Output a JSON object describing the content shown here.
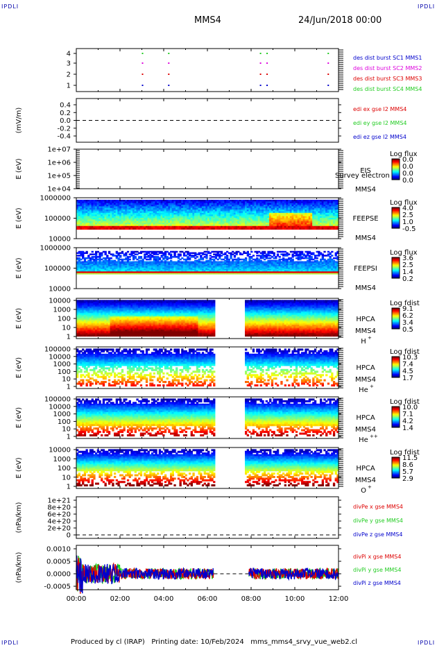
{
  "corner_label": "IPDLI",
  "header": {
    "spacecraft": "MMS4",
    "datetime": "24/Jun/2018 00:00"
  },
  "x_axis": {
    "ticks": [
      "00:00",
      "02:00",
      "04:00",
      "06:00",
      "08:00",
      "10:00",
      "12:00"
    ]
  },
  "footer": {
    "produced_by": "Produced by cl (IRAP)",
    "printing_date": "Printing date: 10/Feb/2024",
    "file_name": "mms_mms4_srvy_vue_web2.cl"
  },
  "colors": {
    "blue": "#0000cc",
    "magenta": "#dd00dd",
    "red": "#dd0000",
    "green": "#22cc22"
  },
  "chart_data": [
    {
      "type": "scatter",
      "panel": "burst",
      "yticks": [
        "4",
        "3",
        "2",
        "1"
      ],
      "legend": [
        {
          "text": "des dist burst SC1 MMS1",
          "color": "blue"
        },
        {
          "text": "des dist burst SC2 MMS2",
          "color": "magenta"
        },
        {
          "text": "des dist burst SC3 MMS3",
          "color": "red"
        },
        {
          "text": "des dist burst SC4 MMS4",
          "color": "green"
        }
      ],
      "burst_times_hours": [
        3.0,
        4.2,
        8.4,
        8.7,
        11.5
      ]
    },
    {
      "type": "line",
      "panel": "edi",
      "ylabel": "(mV/m)",
      "yticks": [
        "0.4",
        "0.2",
        "0.0",
        "-0.2",
        "-0.4"
      ],
      "legend": [
        {
          "text": "edi ex gse l2 MMS4",
          "color": "red"
        },
        {
          "text": "edi ey gse l2 MMS4",
          "color": "green"
        },
        {
          "text": "edi ez gse l2 MMS4",
          "color": "blue"
        }
      ]
    },
    {
      "type": "heatmap",
      "panel": "eis",
      "ylabel": "E (eV)",
      "yticks": [
        "1e+07",
        "1e+06",
        "1e+05",
        "1e+04"
      ],
      "instrument": "EIS",
      "overlay_text": "Survey electron to",
      "spacecraft": "MMS4",
      "colorbar_title": "Log flux",
      "colorbar_ticks": [
        "0.0",
        "0.0",
        "0.0",
        "0.0"
      ]
    },
    {
      "type": "heatmap",
      "panel": "feepse",
      "ylabel": "E (eV)",
      "yticks": [
        "1000000",
        "100000",
        "10000"
      ],
      "instrument": "FEEPSE",
      "spacecraft": "MMS4",
      "colorbar_title": "Log flux",
      "colorbar_ticks": [
        "4.0",
        "2.5",
        "1.0",
        "-0.5"
      ]
    },
    {
      "type": "heatmap",
      "panel": "feepsi",
      "ylabel": "E (eV)",
      "yticks": [
        "1000000",
        "100000",
        "10000"
      ],
      "instrument": "FEEPSI",
      "spacecraft": "MMS4",
      "colorbar_title": "Log flux",
      "colorbar_ticks": [
        "3.6",
        "2.5",
        "1.4",
        "0.2"
      ]
    },
    {
      "type": "heatmap",
      "panel": "hpca_h",
      "ylabel": "E (eV)",
      "yticks": [
        "10000",
        "1000",
        "100",
        "10",
        "1"
      ],
      "instrument": "HPCA",
      "spacecraft": "MMS4",
      "species": "H",
      "charge": "+",
      "colorbar_title": "Log fdist",
      "colorbar_ticks": [
        "9.1",
        "6.2",
        "3.4",
        "0.5"
      ],
      "data_gap_hours": [
        6.3,
        7.7
      ]
    },
    {
      "type": "heatmap",
      "panel": "hpca_he1",
      "ylabel": "E (eV)",
      "yticks": [
        "100000",
        "10000",
        "1000",
        "100",
        "10",
        "1"
      ],
      "instrument": "HPCA",
      "spacecraft": "MMS4",
      "species": "He",
      "charge": "+",
      "colorbar_title": "Log fdist",
      "colorbar_ticks": [
        "10.3",
        "7.4",
        "4.5",
        "1.7"
      ],
      "data_gap_hours": [
        6.3,
        7.7
      ]
    },
    {
      "type": "heatmap",
      "panel": "hpca_he2",
      "ylabel": "E (eV)",
      "yticks": [
        "100000",
        "10000",
        "1000",
        "100",
        "10",
        "1"
      ],
      "instrument": "HPCA",
      "spacecraft": "MMS4",
      "species": "He",
      "charge": "++",
      "colorbar_title": "Log fdist",
      "colorbar_ticks": [
        "10.0",
        "7.1",
        "4.2",
        "1.4"
      ],
      "data_gap_hours": [
        6.3,
        7.7
      ]
    },
    {
      "type": "heatmap",
      "panel": "hpca_o",
      "ylabel": "E (eV)",
      "yticks": [
        "10000",
        "1000",
        "100",
        "10",
        "1"
      ],
      "instrument": "HPCA",
      "spacecraft": "MMS4",
      "species": "O",
      "charge": "+",
      "colorbar_title": "Log fdist",
      "colorbar_ticks": [
        "11.5",
        "8.6",
        "5.7",
        "2.9"
      ],
      "data_gap_hours": [
        6.3,
        7.7
      ]
    },
    {
      "type": "line",
      "panel": "divpe",
      "ylabel": "(nPa/km)",
      "yticks": [
        "1e+21",
        "8e+20",
        "6e+20",
        "4e+20",
        "2e+20",
        "0"
      ],
      "legend": [
        {
          "text": "divPe x gse MMS4",
          "color": "red"
        },
        {
          "text": "divPe y gse MMS4",
          "color": "green"
        },
        {
          "text": "divPe z gse MMS4",
          "color": "blue"
        }
      ]
    },
    {
      "type": "line",
      "panel": "divpi",
      "ylabel": "(nPa/km)",
      "yticks": [
        "0.0010",
        "0.0005",
        "0.0000",
        "-0.0005"
      ],
      "legend": [
        {
          "text": "divPi x gse MMS4",
          "color": "red"
        },
        {
          "text": "divPi y gse MMS4",
          "color": "green"
        },
        {
          "text": "divPi z gse MMS4",
          "color": "blue"
        }
      ],
      "data_gap_hours": [
        6.3,
        7.9
      ]
    }
  ]
}
